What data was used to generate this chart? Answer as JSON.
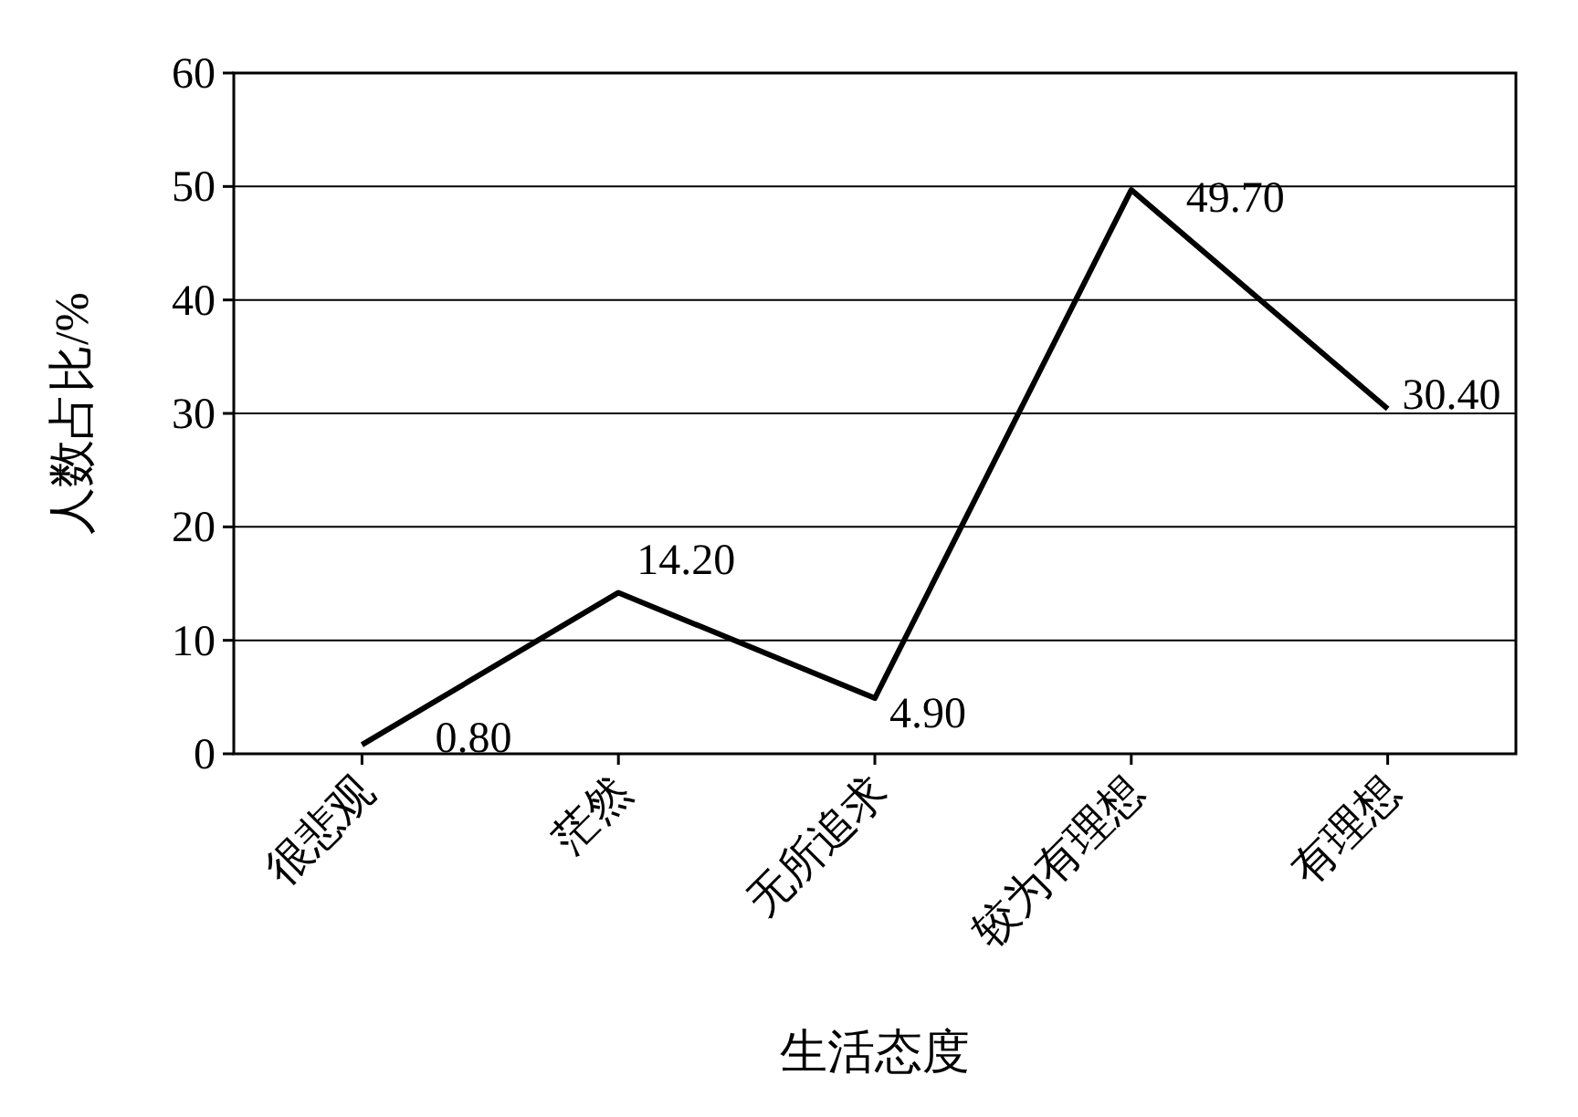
{
  "chart_data": {
    "type": "line",
    "xlabel": "生活态度",
    "ylabel": "人数占比/%",
    "categories": [
      "很悲观",
      "茫然",
      "无所追求",
      "较为有理想",
      "有理想"
    ],
    "series": [
      {
        "color": "#000000",
        "values": [
          0.8,
          14.2,
          4.9,
          49.7,
          30.4
        ]
      }
    ],
    "value_labels": [
      "0.80",
      "14.20",
      "4.90",
      "49.70",
      "30.40"
    ],
    "ylim": [
      0,
      60
    ],
    "yticks": [
      0,
      10,
      20,
      30,
      40,
      50,
      60
    ],
    "grid": "y",
    "marker": "none",
    "line_style": "solid"
  }
}
